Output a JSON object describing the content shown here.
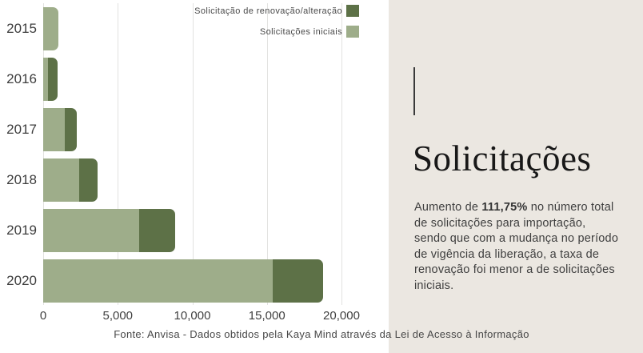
{
  "legend": [
    {
      "label": "Solicitação de renovação/alteração",
      "color": "#5D7147"
    },
    {
      "label": "Solicitações iniciais",
      "color": "#9EAD8A"
    }
  ],
  "chart_data": {
    "type": "bar",
    "orientation": "horizontal",
    "stacked": true,
    "title": "Solicitações",
    "categories": [
      "2015",
      "2016",
      "2017",
      "2018",
      "2019",
      "2020"
    ],
    "series": [
      {
        "name": "Solicitações iniciais",
        "color": "#9EAD8A",
        "values": [
          1000,
          330,
          1450,
          2400,
          6450,
          15400
        ]
      },
      {
        "name": "Solicitação de renovação/alteração",
        "color": "#5D7147",
        "values": [
          0,
          660,
          800,
          1250,
          2400,
          3350
        ]
      }
    ],
    "totals": [
      1000,
      990,
      2250,
      3650,
      8850,
      18750
    ],
    "x_ticks": [
      "0",
      "5,000",
      "10,000",
      "15,000",
      "20,000"
    ],
    "x_tick_values": [
      0,
      5000,
      10000,
      15000,
      20000
    ],
    "xlim": [
      0,
      20000
    ],
    "grid": true,
    "legend_position": "top-right"
  },
  "panel": {
    "title": "Solicitações",
    "body_prefix": "Aumento de ",
    "body_bold": "111,75%",
    "body_suffix": " no número total de solicitações para importação, sendo que com a mudança no período de vigência da liberação, a taxa de renovação foi menor a de solicitações iniciais.",
    "background": "#ebe7e1"
  },
  "footer": {
    "text": "Fonte: Anvisa - Dados obtidos pela Kaya Mind através da Lei de Acesso à Informação"
  }
}
